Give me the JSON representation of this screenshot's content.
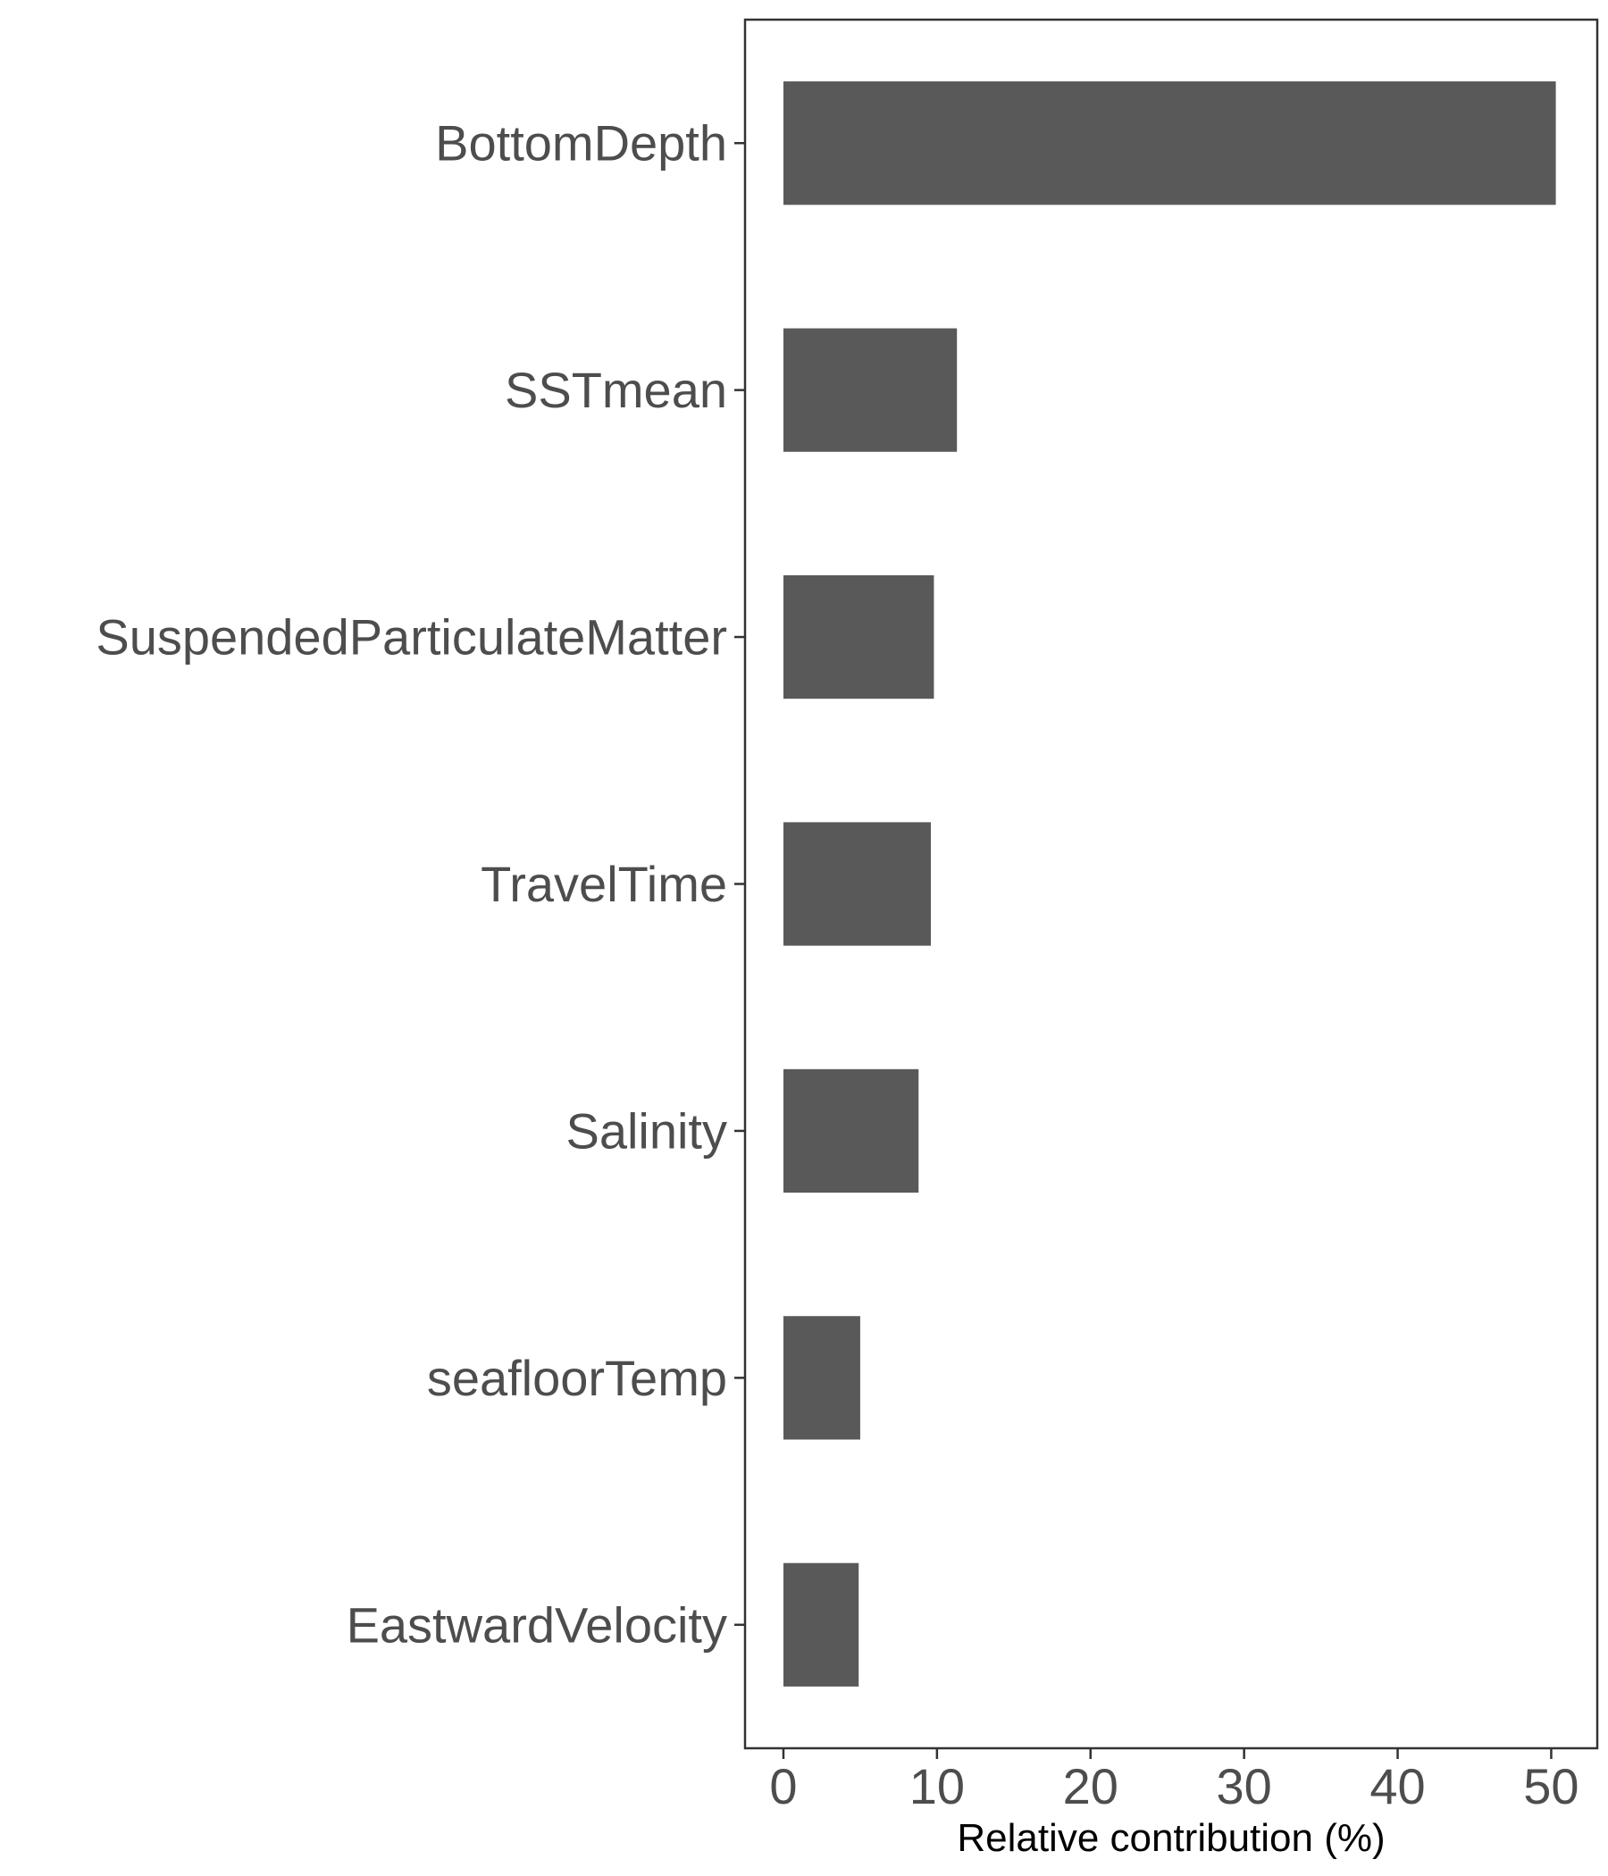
{
  "chart_data": {
    "type": "bar",
    "orientation": "horizontal",
    "title": "",
    "xlabel": "Relative contribution (%)",
    "ylabel": "",
    "categories": [
      "BottomDepth",
      "SSTmean",
      "SuspendedParticulateMatter",
      "TravelTime",
      "Salinity",
      "seafloorTemp",
      "EastwardVelocity"
    ],
    "values": [
      50.3,
      11.3,
      9.8,
      9.6,
      8.8,
      5.0,
      4.9
    ],
    "xticks": [
      "0",
      "10",
      "20",
      "30",
      "40",
      "50"
    ],
    "xlim": [
      -2.5,
      53
    ],
    "grid": false,
    "legend": "none",
    "bar_color": "#595959",
    "frame_color": "#333333",
    "tick_label_color": "#4d4d4d"
  }
}
